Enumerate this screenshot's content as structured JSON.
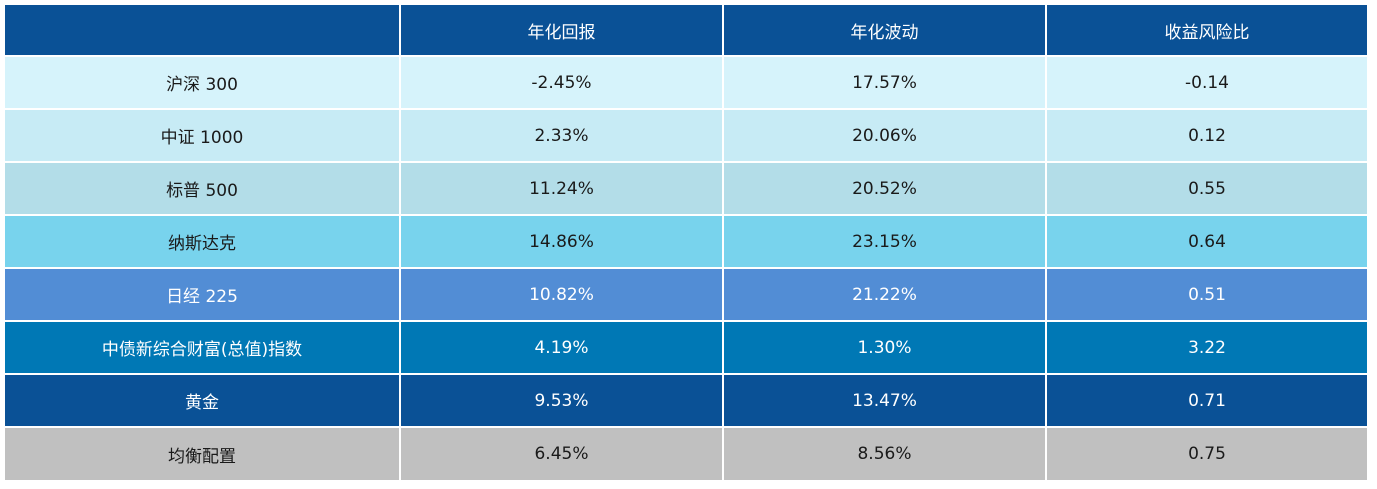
{
  "chart_data": {
    "type": "table",
    "columns": [
      "",
      "年化回报",
      "年化波动",
      "收益风险比"
    ],
    "header_color": "#0a5196",
    "rows": [
      {
        "name": "沪深 300",
        "values": [
          "-2.45%",
          "17.57%",
          "-0.14"
        ],
        "bg": "#d6f3fb",
        "fg": "#1a1a1a"
      },
      {
        "name": "中证 1000",
        "values": [
          "2.33%",
          "20.06%",
          "0.12"
        ],
        "bg": "#c7ebf5",
        "fg": "#1a1a1a"
      },
      {
        "name": "标普 500",
        "values": [
          "11.24%",
          "20.52%",
          "0.55"
        ],
        "bg": "#b3dde8",
        "fg": "#1a1a1a"
      },
      {
        "name": "纳斯达克",
        "values": [
          "14.86%",
          "23.15%",
          "0.64"
        ],
        "bg": "#78d3ed",
        "fg": "#1a1a1a"
      },
      {
        "name": "日经 225",
        "values": [
          "10.82%",
          "21.22%",
          "0.51"
        ],
        "bg": "#528dd5",
        "fg": "#ffffff"
      },
      {
        "name": "中债新综合财富(总值)指数",
        "values": [
          "4.19%",
          "1.30%",
          "3.22"
        ],
        "bg": "#0078b5",
        "fg": "#ffffff"
      },
      {
        "name": "黄金",
        "values": [
          "9.53%",
          "13.47%",
          "0.71"
        ],
        "bg": "#0a5196",
        "fg": "#ffffff"
      },
      {
        "name": "均衡配置",
        "values": [
          "6.45%",
          "8.56%",
          "0.75"
        ],
        "bg": "#c0c0c0",
        "fg": "#1a1a1a"
      }
    ]
  }
}
